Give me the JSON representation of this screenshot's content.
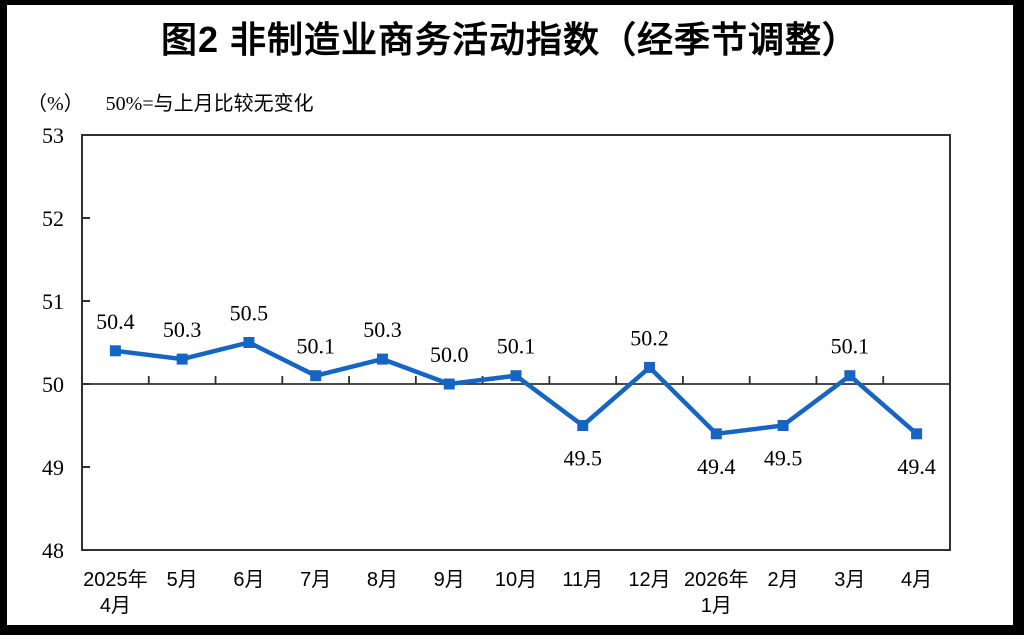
{
  "title": "图2 非制造业商务活动指数（经季节调整）",
  "subtitle": {
    "unit": "（%）",
    "note": "50%=与上月比较无变化"
  },
  "chart_data": {
    "type": "line",
    "title": "图2 非制造业商务活动指数（经季节调整）",
    "unit_label": "（%）",
    "annotation": "50%=与上月比较无变化",
    "categories": [
      "2025年\n4月",
      "5月",
      "6月",
      "7月",
      "8月",
      "9月",
      "10月",
      "11月",
      "12月",
      "2026年\n1月",
      "2月",
      "3月",
      "4月"
    ],
    "values": [
      50.4,
      50.3,
      50.5,
      50.1,
      50.3,
      50.0,
      50.1,
      49.5,
      50.2,
      49.4,
      49.5,
      50.1,
      49.4
    ],
    "ylim": [
      48,
      53
    ],
    "yticks": [
      48,
      49,
      50,
      51,
      52,
      53
    ],
    "baseline_value": 50,
    "grid": false,
    "legend": "none",
    "marker": "square",
    "colors": {
      "line": "#1565C4",
      "marker": "#1565C4",
      "axis": "#303030",
      "text": "#000000",
      "background": "#ffffff",
      "frame": "#000000"
    }
  }
}
